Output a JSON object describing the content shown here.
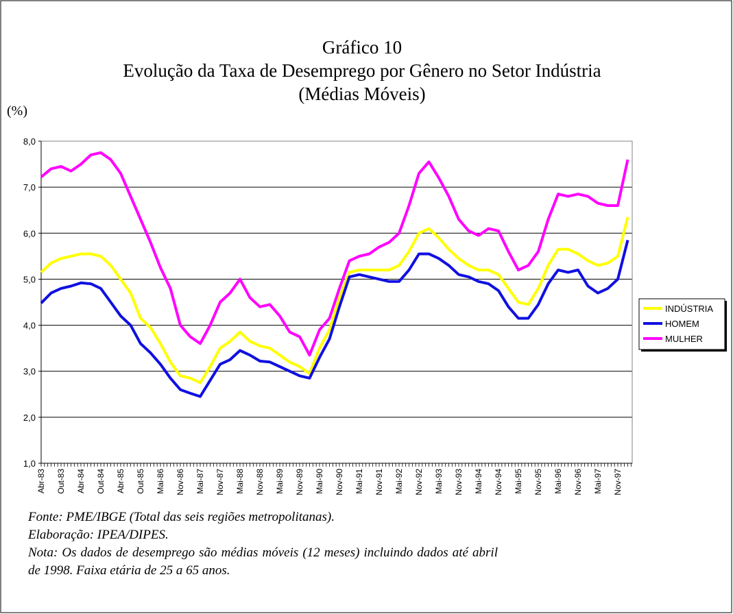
{
  "chart_data": {
    "type": "line",
    "title": [
      "Gráfico 10",
      "Evolução da Taxa de Desemprego por Gênero no Setor Indústria",
      "(Médias Móveis)"
    ],
    "y_label": "(%)",
    "categories": [
      "Abr-83",
      null,
      "Out-83",
      null,
      "Abr-84",
      null,
      "Out-84",
      null,
      "Abr-85",
      null,
      "Out-85",
      null,
      "Mai-86",
      null,
      "Nov-86",
      null,
      "Mai-87",
      null,
      "Nov-87",
      null,
      "Mai-88",
      null,
      "Nov-88",
      null,
      "Mai-89",
      null,
      "Nov-89",
      null,
      "Mai-90",
      null,
      "Nov-90",
      null,
      "Mai-91",
      null,
      "Nov-91",
      null,
      "Mai-92",
      null,
      "Nov-92",
      null,
      "Mai-93",
      null,
      "Nov-93",
      null,
      "Mai-94",
      null,
      "Nov-94",
      null,
      "Mai-95",
      null,
      "Nov-95",
      null,
      "Mai-96",
      null,
      "Nov-96",
      null,
      "Mai-97",
      null,
      "Nov-97",
      null
    ],
    "series": [
      {
        "name": "INDÚSTRIA",
        "color": "#ffff00",
        "values": [
          5.15,
          5.35,
          5.45,
          5.5,
          5.55,
          5.55,
          5.5,
          5.3,
          5.0,
          4.7,
          4.15,
          3.95,
          3.6,
          3.2,
          2.9,
          2.85,
          2.75,
          3.1,
          3.5,
          3.65,
          3.85,
          3.65,
          3.55,
          3.5,
          3.35,
          3.2,
          3.1,
          2.95,
          3.5,
          3.9,
          4.6,
          5.15,
          5.2,
          5.2,
          5.2,
          5.2,
          5.3,
          5.6,
          6.0,
          6.1,
          5.9,
          5.65,
          5.45,
          5.3,
          5.2,
          5.2,
          5.1,
          4.8,
          4.5,
          4.45,
          4.8,
          5.3,
          5.65,
          5.65,
          5.55,
          5.4,
          5.3,
          5.35,
          5.5,
          6.35
        ]
      },
      {
        "name": "HOMEM",
        "color": "#1010e0",
        "values": [
          4.48,
          4.7,
          4.8,
          4.85,
          4.92,
          4.9,
          4.8,
          4.5,
          4.2,
          4.0,
          3.6,
          3.4,
          3.15,
          2.85,
          2.6,
          2.52,
          2.45,
          2.8,
          3.15,
          3.25,
          3.45,
          3.35,
          3.22,
          3.2,
          3.1,
          3.0,
          2.9,
          2.85,
          3.3,
          3.7,
          4.4,
          5.05,
          5.1,
          5.05,
          5.0,
          4.95,
          4.95,
          5.2,
          5.55,
          5.55,
          5.45,
          5.3,
          5.1,
          5.05,
          4.95,
          4.9,
          4.75,
          4.4,
          4.15,
          4.15,
          4.45,
          4.9,
          5.2,
          5.15,
          5.2,
          4.85,
          4.7,
          4.8,
          5.0,
          5.85
        ]
      },
      {
        "name": "MULHER",
        "color": "#ff00ff",
        "values": [
          7.22,
          7.4,
          7.45,
          7.35,
          7.5,
          7.7,
          7.75,
          7.6,
          7.3,
          6.8,
          6.3,
          5.8,
          5.25,
          4.8,
          4.0,
          3.75,
          3.6,
          4.0,
          4.5,
          4.7,
          5.0,
          4.6,
          4.4,
          4.45,
          4.2,
          3.85,
          3.75,
          3.35,
          3.9,
          4.15,
          4.8,
          5.4,
          5.5,
          5.55,
          5.7,
          5.8,
          6.0,
          6.6,
          7.3,
          7.55,
          7.2,
          6.8,
          6.3,
          6.05,
          5.95,
          6.1,
          6.05,
          5.6,
          5.2,
          5.3,
          5.6,
          6.3,
          6.85,
          6.8,
          6.85,
          6.8,
          6.65,
          6.6,
          6.6,
          7.6
        ]
      }
    ],
    "ylim": [
      1,
      8
    ],
    "yticks": [
      {
        "value": 1,
        "label": "1,0"
      },
      {
        "value": 2,
        "label": "2,0"
      },
      {
        "value": 3,
        "label": "3,0"
      },
      {
        "value": 4,
        "label": "4,0"
      },
      {
        "value": 5,
        "label": "5,0"
      },
      {
        "value": 6,
        "label": "6,0"
      },
      {
        "value": 7,
        "label": "7,0"
      },
      {
        "value": 8,
        "label": "8,0"
      }
    ],
    "grid": true,
    "legend": "right",
    "notes": [
      "Fonte: PME/IBGE (Total das seis regiões metropolitanas).",
      "Elaboração: IPEA/DIPES.",
      "Nota: Os dados de desemprego são médias móveis (12 meses) incluindo dados até abril de 1998. Faixa etária de 25 a 65 anos."
    ]
  }
}
